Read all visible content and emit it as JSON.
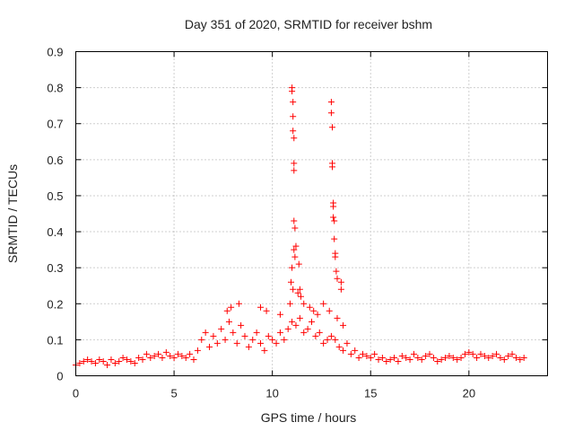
{
  "chart_data": {
    "type": "scatter",
    "title": "Day 351 of 2020, SRMTID for receiver bshm",
    "xlabel": "GPS time / hours",
    "ylabel": "SRMTID / TECUs",
    "xlim": [
      0,
      24
    ],
    "ylim": [
      0,
      0.9
    ],
    "xticks": [
      0,
      5,
      10,
      15,
      20
    ],
    "yticks": [
      0,
      0.1,
      0.2,
      0.3,
      0.4,
      0.5,
      0.6,
      0.7,
      0.8,
      0.9
    ],
    "xtick_labels": [
      "0",
      "5",
      "10",
      "15",
      "20"
    ],
    "ytick_labels": [
      "0",
      "0.1",
      "0.2",
      "0.3",
      "0.4",
      "0.5",
      "0.6",
      "0.7",
      "0.8",
      "0.9"
    ],
    "grid": true,
    "marker": "+",
    "color": "#ff0000",
    "series": [
      {
        "name": "SRMTID",
        "x": [
          0.0,
          0.2,
          0.4,
          0.6,
          0.8,
          1.0,
          1.2,
          1.4,
          1.6,
          1.8,
          2.0,
          2.2,
          2.4,
          2.6,
          2.8,
          3.0,
          3.2,
          3.4,
          3.6,
          3.8,
          4.0,
          4.2,
          4.4,
          4.6,
          4.8,
          5.0,
          5.2,
          5.4,
          5.6,
          5.8,
          6.0,
          6.2,
          6.4,
          6.6,
          6.8,
          7.0,
          7.2,
          7.4,
          7.6,
          7.8,
          8.0,
          8.2,
          8.4,
          8.6,
          8.8,
          9.0,
          9.2,
          9.4,
          9.6,
          9.8,
          10.0,
          10.2,
          10.4,
          10.6,
          10.8,
          11.0,
          11.2,
          11.4,
          11.6,
          11.8,
          12.0,
          12.2,
          12.4,
          12.6,
          12.8,
          13.0,
          13.2,
          13.4,
          13.6,
          13.8,
          14.0,
          14.2,
          14.4,
          14.6,
          14.8,
          15.0,
          15.2,
          15.4,
          15.6,
          15.8,
          16.0,
          16.2,
          16.4,
          16.6,
          16.8,
          17.0,
          17.2,
          17.4,
          17.6,
          17.8,
          18.0,
          18.2,
          18.4,
          18.6,
          18.8,
          19.0,
          19.2,
          19.4,
          19.6,
          19.8,
          20.0,
          20.2,
          20.4,
          20.6,
          20.8,
          21.0,
          21.2,
          21.4,
          21.6,
          21.8,
          22.0,
          22.2,
          22.4,
          22.6,
          22.8,
          11.0,
          11.0,
          11.05,
          11.05,
          11.05,
          11.1,
          11.1,
          11.1,
          11.1,
          11.15,
          11.15,
          11.0,
          11.1,
          11.2,
          11.35,
          11.4,
          11.45,
          13.0,
          13.0,
          13.05,
          13.05,
          13.05,
          13.1,
          13.1,
          13.1,
          13.15,
          13.15,
          13.2,
          13.2,
          13.25,
          13.3,
          13.5,
          13.5,
          10.95,
          11.05,
          11.3,
          11.6,
          11.9,
          12.1,
          12.3,
          12.6,
          12.9,
          13.3,
          13.6,
          7.7,
          7.9,
          8.3,
          9.4,
          9.7,
          10.4,
          10.9
        ],
        "y": [
          0.03,
          0.035,
          0.04,
          0.045,
          0.04,
          0.035,
          0.045,
          0.04,
          0.03,
          0.045,
          0.035,
          0.04,
          0.05,
          0.045,
          0.04,
          0.035,
          0.05,
          0.045,
          0.06,
          0.05,
          0.055,
          0.06,
          0.05,
          0.065,
          0.055,
          0.05,
          0.06,
          0.055,
          0.05,
          0.06,
          0.045,
          0.07,
          0.1,
          0.12,
          0.08,
          0.11,
          0.09,
          0.13,
          0.1,
          0.15,
          0.12,
          0.09,
          0.14,
          0.11,
          0.08,
          0.1,
          0.12,
          0.09,
          0.07,
          0.11,
          0.1,
          0.09,
          0.12,
          0.1,
          0.13,
          0.15,
          0.14,
          0.16,
          0.12,
          0.13,
          0.15,
          0.11,
          0.12,
          0.09,
          0.1,
          0.11,
          0.1,
          0.08,
          0.07,
          0.09,
          0.06,
          0.07,
          0.05,
          0.06,
          0.055,
          0.05,
          0.06,
          0.045,
          0.05,
          0.04,
          0.045,
          0.05,
          0.04,
          0.055,
          0.05,
          0.045,
          0.06,
          0.05,
          0.045,
          0.055,
          0.06,
          0.05,
          0.04,
          0.045,
          0.05,
          0.055,
          0.05,
          0.045,
          0.05,
          0.06,
          0.065,
          0.06,
          0.05,
          0.06,
          0.055,
          0.05,
          0.055,
          0.06,
          0.05,
          0.045,
          0.055,
          0.06,
          0.05,
          0.045,
          0.05,
          0.8,
          0.79,
          0.76,
          0.72,
          0.68,
          0.66,
          0.59,
          0.57,
          0.43,
          0.41,
          0.33,
          0.3,
          0.35,
          0.36,
          0.31,
          0.24,
          0.22,
          0.76,
          0.73,
          0.69,
          0.59,
          0.58,
          0.48,
          0.47,
          0.44,
          0.43,
          0.38,
          0.34,
          0.33,
          0.29,
          0.27,
          0.26,
          0.24,
          0.26,
          0.24,
          0.23,
          0.2,
          0.19,
          0.18,
          0.17,
          0.2,
          0.18,
          0.16,
          0.14,
          0.18,
          0.19,
          0.2,
          0.19,
          0.18,
          0.17,
          0.2
        ]
      }
    ]
  }
}
